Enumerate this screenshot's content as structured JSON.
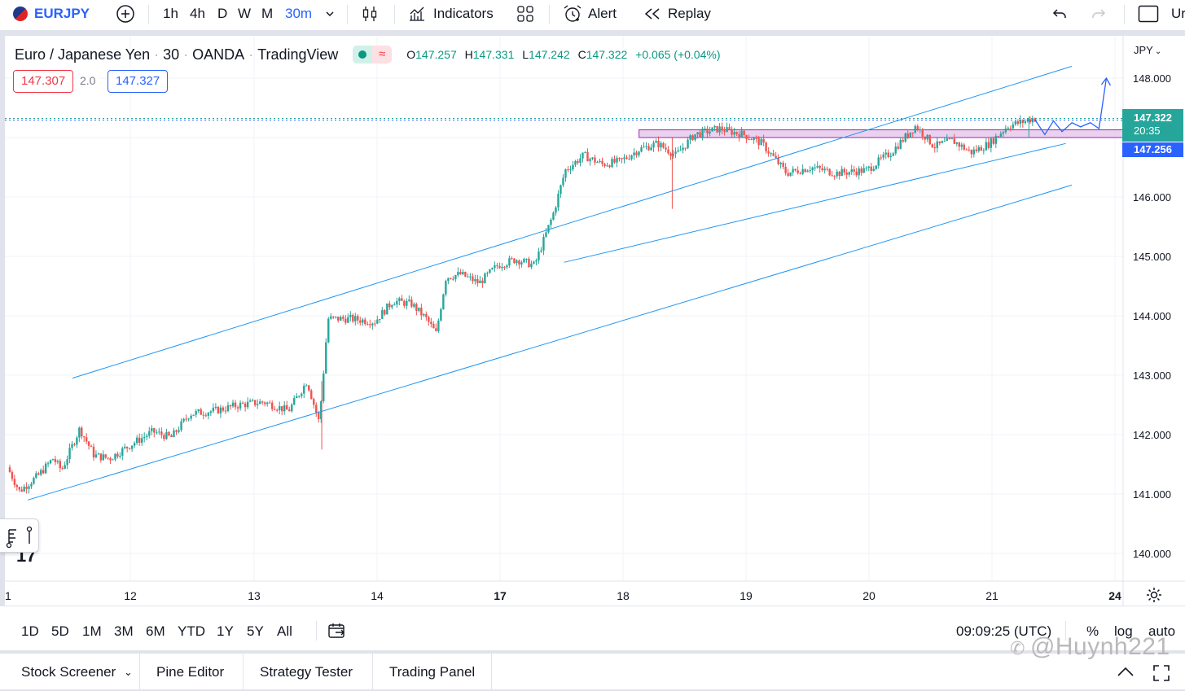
{
  "toolbar": {
    "symbol": "EURJPY",
    "intervals": [
      "1h",
      "4h",
      "D",
      "W",
      "M",
      "30m"
    ],
    "indicators_label": "Indicators",
    "alert_label": "Alert",
    "replay_label": "Replay",
    "user_label": "Ur"
  },
  "legend": {
    "name": "Euro / Japanese Yen",
    "interval": "30",
    "exchange": "OANDA",
    "source": "TradingView",
    "open_label": "O",
    "open": "147.257",
    "high_label": "H",
    "high": "147.331",
    "low_label": "L",
    "low": "147.242",
    "close_label": "C",
    "close": "147.322",
    "change": "+0.065 (+0.04%)",
    "sell_price": "147.307",
    "spread": "2.0",
    "buy_price": "147.327"
  },
  "price_axis": {
    "currency": "JPY",
    "last_price": "147.322",
    "countdown": "20:35",
    "zone_price": "147.256"
  },
  "colors": {
    "up": "#26a69a",
    "down": "#ef5350",
    "channel": "#2196f3",
    "projection": "#2962ff",
    "zone_fill": "#e1bee7",
    "zone_border": "#9c27b0",
    "last_price_label": "#26a69a",
    "zone_label": "#2962ff"
  },
  "chart_data": {
    "type": "candlestick",
    "symbol": "EURJPY",
    "interval": "30",
    "y_ticks": [
      "140.000",
      "141.000",
      "142.000",
      "143.000",
      "144.000",
      "145.000",
      "146.000",
      "147.000",
      "148.000"
    ],
    "x_ticks": [
      "1",
      "12",
      "13",
      "14",
      "17",
      "18",
      "19",
      "20",
      "21",
      "24"
    ],
    "ylim": [
      139.5,
      148.3
    ],
    "price_path": [
      {
        "day": 11.0,
        "price": 141.45
      },
      {
        "day": 11.1,
        "price": 141.05
      },
      {
        "day": 11.25,
        "price": 141.3
      },
      {
        "day": 11.38,
        "price": 141.6
      },
      {
        "day": 11.45,
        "price": 141.4
      },
      {
        "day": 11.6,
        "price": 142.1
      },
      {
        "day": 11.72,
        "price": 141.65
      },
      {
        "day": 11.85,
        "price": 141.6
      },
      {
        "day": 12.0,
        "price": 141.8
      },
      {
        "day": 12.2,
        "price": 142.05
      },
      {
        "day": 12.35,
        "price": 141.95
      },
      {
        "day": 12.5,
        "price": 142.35
      },
      {
        "day": 12.7,
        "price": 142.4
      },
      {
        "day": 12.9,
        "price": 142.5
      },
      {
        "day": 13.1,
        "price": 142.55
      },
      {
        "day": 13.3,
        "price": 142.4
      },
      {
        "day": 13.45,
        "price": 142.9
      },
      {
        "day": 13.55,
        "price": 142.2
      },
      {
        "day": 13.62,
        "price": 143.95
      },
      {
        "day": 13.8,
        "price": 143.95
      },
      {
        "day": 14.0,
        "price": 143.9
      },
      {
        "day": 14.15,
        "price": 144.25
      },
      {
        "day": 14.3,
        "price": 144.2
      },
      {
        "day": 14.42,
        "price": 143.95
      },
      {
        "day": 14.5,
        "price": 143.7
      },
      {
        "day": 14.58,
        "price": 144.65
      },
      {
        "day": 14.7,
        "price": 144.7
      },
      {
        "day": 14.85,
        "price": 144.55
      },
      {
        "day": 15.0,
        "price": 144.85
      },
      {
        "day": 15.15,
        "price": 144.95
      },
      {
        "day": 15.3,
        "price": 144.85
      },
      {
        "day": 15.45,
        "price": 145.7
      },
      {
        "day": 15.55,
        "price": 146.45
      },
      {
        "day": 15.7,
        "price": 146.7
      },
      {
        "day": 15.85,
        "price": 146.55
      },
      {
        "day": 16.0,
        "price": 146.6
      },
      {
        "day": 16.15,
        "price": 146.8
      },
      {
        "day": 16.3,
        "price": 146.9
      },
      {
        "day": 16.45,
        "price": 146.7
      },
      {
        "day": 16.6,
        "price": 147.05
      },
      {
        "day": 16.8,
        "price": 147.15
      },
      {
        "day": 17.0,
        "price": 147.05
      },
      {
        "day": 17.15,
        "price": 146.9
      },
      {
        "day": 17.35,
        "price": 146.4
      },
      {
        "day": 17.55,
        "price": 146.5
      },
      {
        "day": 17.75,
        "price": 146.4
      },
      {
        "day": 18.0,
        "price": 146.45
      },
      {
        "day": 18.2,
        "price": 146.75
      },
      {
        "day": 18.4,
        "price": 147.2
      },
      {
        "day": 18.55,
        "price": 146.85
      },
      {
        "day": 18.7,
        "price": 146.95
      },
      {
        "day": 18.85,
        "price": 146.75
      },
      {
        "day": 19.0,
        "price": 146.9
      },
      {
        "day": 19.15,
        "price": 147.2
      },
      {
        "day": 19.25,
        "price": 147.25
      },
      {
        "day": 19.35,
        "price": 147.32
      }
    ],
    "series": [
      {
        "name": "Channel upper",
        "points": [
          [
            11.52,
            142.95
          ],
          [
            19.65,
            148.2
          ]
        ]
      },
      {
        "name": "Channel middle",
        "points": [
          [
            15.52,
            144.9
          ],
          [
            19.6,
            146.9
          ]
        ]
      },
      {
        "name": "Channel lower",
        "points": [
          [
            11.15,
            140.9
          ],
          [
            19.65,
            146.2
          ]
        ]
      }
    ],
    "zone": {
      "x_start": 16.13,
      "x_end": 19.8,
      "y_low": 147.0,
      "y_high": 147.13
    },
    "projection": [
      [
        19.35,
        147.3
      ],
      [
        19.43,
        147.05
      ],
      [
        19.5,
        147.28
      ],
      [
        19.57,
        147.1
      ],
      [
        19.65,
        147.25
      ],
      [
        19.72,
        147.18
      ],
      [
        19.8,
        147.25
      ],
      [
        19.87,
        147.15
      ],
      [
        19.93,
        148.0
      ]
    ],
    "last_price": 147.322,
    "grid": true
  },
  "range_buttons": [
    "1D",
    "5D",
    "1M",
    "3M",
    "6M",
    "YTD",
    "1Y",
    "5Y",
    "All"
  ],
  "status": {
    "time": "09:09:25 (UTC)",
    "percent": "%",
    "log": "log",
    "auto": "auto"
  },
  "bottom_tabs": [
    "Stock Screener",
    "Pine Editor",
    "Strategy Tester",
    "Trading Panel"
  ],
  "watermark": "@Huynh221"
}
